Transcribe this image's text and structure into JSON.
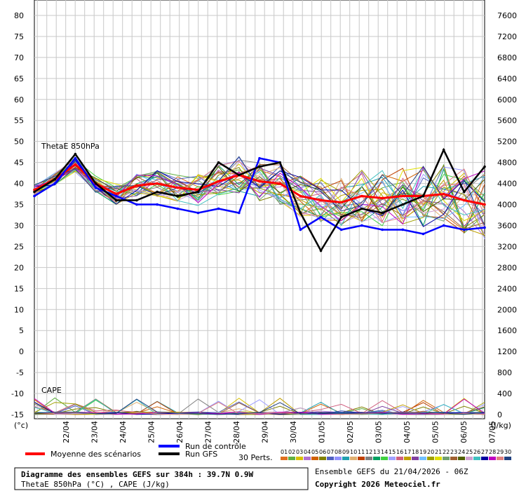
{
  "chart_data": {
    "type": "line",
    "left_axis_unit": "(°c)",
    "right_axis_unit": "(J/kg)",
    "left_ticks": [
      80,
      75,
      70,
      65,
      60,
      55,
      50,
      45,
      40,
      35,
      30,
      25,
      20,
      15,
      10,
      5,
      0,
      -5,
      -10,
      -15
    ],
    "right_ticks": [
      7600,
      7200,
      6800,
      6400,
      6000,
      5600,
      5200,
      4800,
      4400,
      4000,
      3600,
      3200,
      2800,
      2400,
      2000,
      1600,
      1200,
      800,
      400,
      0
    ],
    "x_labels": [
      "22/04",
      "23/04",
      "24/04",
      "25/04",
      "26/04",
      "27/04",
      "28/04",
      "29/04",
      "30/04",
      "01/05",
      "02/05",
      "03/05",
      "04/05",
      "05/05",
      "06/05",
      "07/05"
    ],
    "panel_labels": {
      "thetae": "ThetaE 850hPa",
      "cape": "CAPE"
    },
    "series": [
      {
        "name": "Moyenne des scénarios",
        "color": "#ff0000",
        "thetae_values": [
          38.5,
          41,
          44.5,
          40,
          37.5,
          39.5,
          40,
          39,
          38.5,
          40.5,
          42,
          40.5,
          40,
          37,
          36,
          35.5,
          37,
          36.5,
          37,
          37,
          37.5,
          36,
          35
        ]
      },
      {
        "name": "Run de contrôle",
        "color": "#0000ff",
        "thetae_values": [
          37,
          40,
          46,
          39,
          37,
          35,
          35,
          34,
          33,
          34,
          33,
          46,
          45,
          29,
          32,
          29,
          30,
          29,
          29,
          28,
          30,
          29,
          29.5
        ]
      },
      {
        "name": "Run GFS",
        "color": "#000000",
        "thetae_values": [
          38,
          41,
          47,
          40,
          36,
          36,
          38,
          37,
          38,
          45,
          42,
          44,
          45,
          33,
          24,
          32,
          34,
          33,
          35,
          37,
          48,
          38,
          44
        ]
      }
    ],
    "legend": {
      "mean": "Moyenne des scénarios",
      "control": "Run de contrôle",
      "gfs": "Run GFS",
      "perts": "30 Perts.",
      "pert_numbers": [
        "01",
        "02",
        "03",
        "04",
        "05",
        "06",
        "07",
        "08",
        "09",
        "10",
        "11",
        "12",
        "13",
        "14",
        "15",
        "16",
        "17",
        "18",
        "19",
        "20",
        "21",
        "22",
        "23",
        "24",
        "25",
        "26",
        "27",
        "28",
        "29",
        "30"
      ],
      "pert_colors": [
        "#e07020",
        "#60b040",
        "#d8c000",
        "#b070d0",
        "#d06000",
        "#808000",
        "#5060c0",
        "#9090ff",
        "#20a0b0",
        "#e0b070",
        "#c04000",
        "#808080",
        "#00a060",
        "#40d040",
        "#a0a0ff",
        "#d06080",
        "#c0a000",
        "#8040a0",
        "#70c0ff",
        "#a0a000",
        "#e0e000",
        "#70a070",
        "#a06030",
        "#506000",
        "#d0a0d0",
        "#40c0c0",
        "#0000a0",
        "#c000c0",
        "#e08080",
        "#204080"
      ]
    },
    "info": {
      "title": "Diagramme des ensembles GEFS sur 384h : 39.7N 0.9W",
      "subtitle": "ThetaE 850hPa (°C) , CAPE (J/kg)",
      "run": "Ensemble GEFS du 21/04/2026 - 06Z",
      "copyright": "Copyright 2026 Meteociel.fr"
    }
  }
}
